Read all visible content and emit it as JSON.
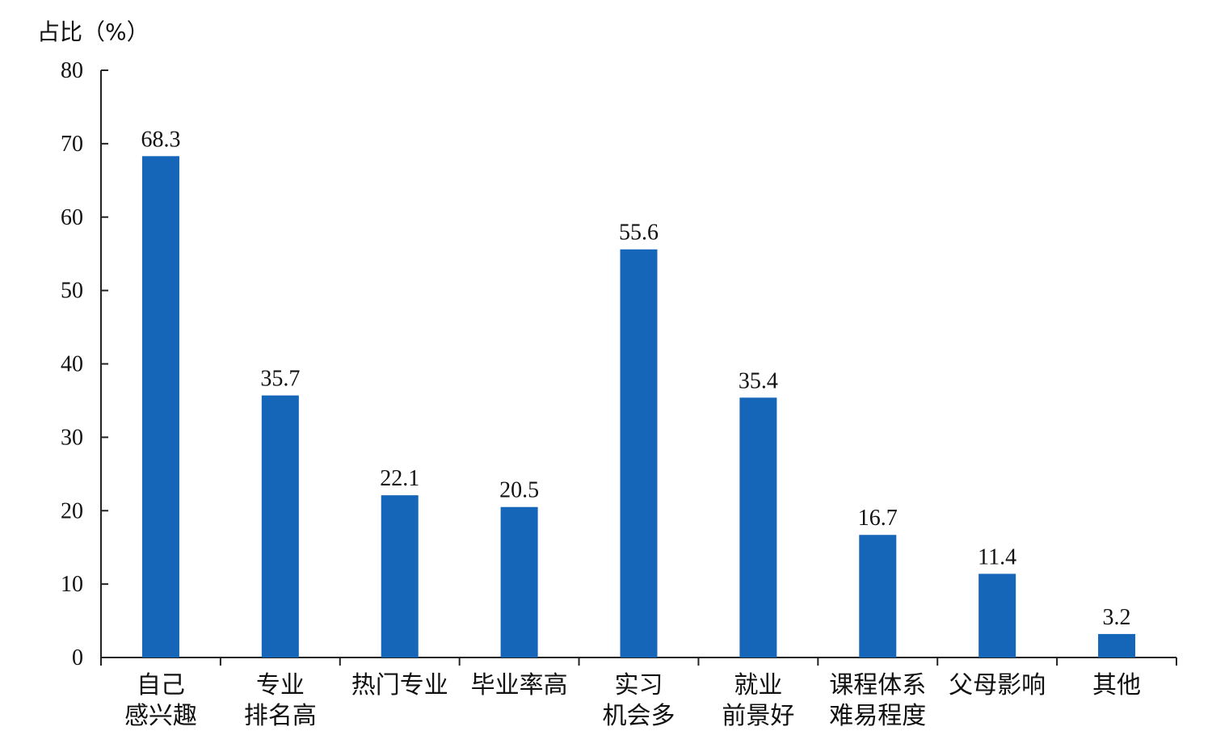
{
  "chart_data": {
    "type": "bar",
    "title": "",
    "xlabel": "",
    "ylabel": "占比（%）",
    "ylim": [
      0,
      80
    ],
    "yticks": [
      0,
      10,
      20,
      30,
      40,
      50,
      60,
      70,
      80
    ],
    "grid": false,
    "categories": [
      [
        "自己",
        "感兴趣"
      ],
      [
        "专业",
        "排名高"
      ],
      [
        "热门专业"
      ],
      [
        "毕业率高"
      ],
      [
        "实习",
        "机会多"
      ],
      [
        "就业",
        "前景好"
      ],
      [
        "课程体系",
        "难易程度"
      ],
      [
        "父母影响"
      ],
      [
        "其他"
      ]
    ],
    "values": [
      68.3,
      35.7,
      22.1,
      20.5,
      55.6,
      35.4,
      16.7,
      11.4,
      3.2
    ],
    "value_labels": [
      "68.3",
      "35.7",
      "22.1",
      "20.5",
      "55.6",
      "35.4",
      "16.7",
      "11.4",
      "3.2"
    ],
    "bar_color": "#1565b8"
  }
}
